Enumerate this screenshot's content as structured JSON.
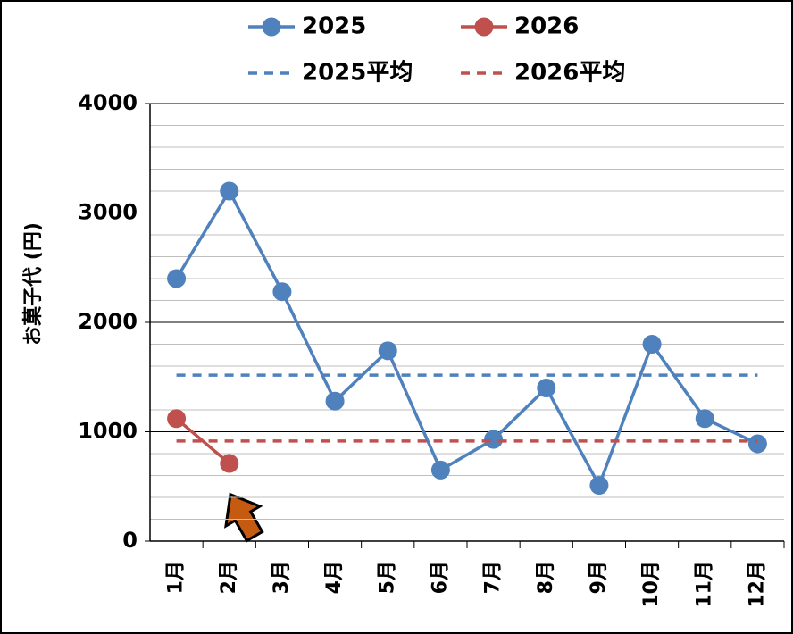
{
  "chart_data": {
    "type": "line",
    "ylabel": "お菓子代 (円)",
    "categories": [
      "1月",
      "2月",
      "3月",
      "4月",
      "5月",
      "6月",
      "7月",
      "8月",
      "9月",
      "10月",
      "11月",
      "12月"
    ],
    "series": [
      {
        "name": "2025",
        "color": "#4f81bd",
        "values": [
          2400,
          3200,
          2280,
          1280,
          1740,
          650,
          930,
          1400,
          510,
          1800,
          1120,
          890
        ]
      },
      {
        "name": "2026",
        "color": "#c0504d",
        "values": [
          1120,
          710,
          null,
          null,
          null,
          null,
          null,
          null,
          null,
          null,
          null,
          null
        ]
      },
      {
        "name": "2025平均",
        "color": "#4f81bd",
        "dashed": true,
        "values": [
          1517,
          1517,
          1517,
          1517,
          1517,
          1517,
          1517,
          1517,
          1517,
          1517,
          1517,
          1517
        ]
      },
      {
        "name": "2026平均",
        "color": "#c0504d",
        "dashed": true,
        "values": [
          915,
          915,
          915,
          915,
          915,
          915,
          915,
          915,
          915,
          915,
          915,
          915
        ]
      }
    ],
    "ylim": [
      0,
      4000
    ],
    "yticks": [
      0,
      1000,
      2000,
      3000,
      4000
    ],
    "yminorticks": [
      200,
      400,
      600,
      800,
      1200,
      1400,
      1600,
      1800,
      2200,
      2400,
      2600,
      2800,
      3200,
      3400,
      3600,
      3800
    ],
    "grid": true,
    "legend": "top"
  }
}
